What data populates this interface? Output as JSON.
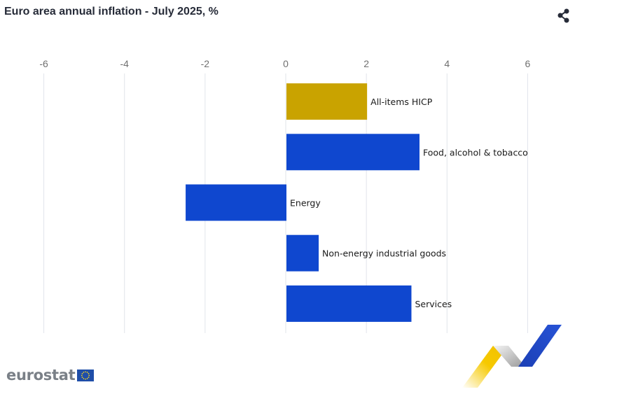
{
  "header": {
    "title": "Euro area annual inflation - July 2025, %"
  },
  "icons": {
    "share": "share-icon"
  },
  "colors": {
    "highlight": "#c9a300",
    "bar": "#0f47cf",
    "grid": "#e1e4ea",
    "tick": "#707070"
  },
  "chart_data": {
    "type": "bar",
    "orientation": "horizontal",
    "title": "Euro area annual inflation - July 2025, %",
    "categories": [
      "All-items HICP",
      "Food, alcohol & tobacco",
      "Energy",
      "Non-energy industrial goods",
      "Services"
    ],
    "values": [
      2.0,
      3.3,
      -2.5,
      0.8,
      3.1
    ],
    "highlighted": [
      "All-items HICP"
    ],
    "xlim": [
      -7,
      7
    ],
    "xticks": [
      -6,
      -4,
      -2,
      0,
      2,
      4,
      6
    ],
    "axis_position": "top",
    "grid": true,
    "legend": "none"
  },
  "footer": {
    "logo_text": "eurostat"
  }
}
